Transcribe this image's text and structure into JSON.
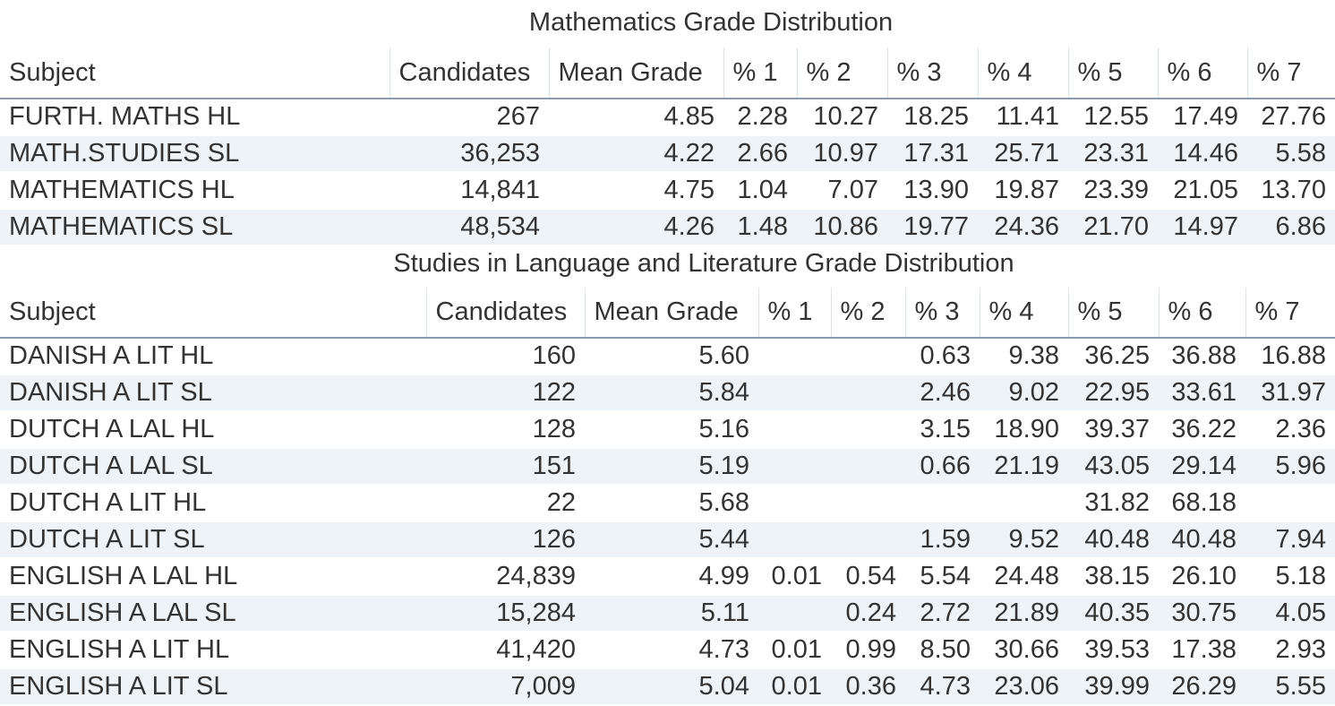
{
  "chart_data": [
    {
      "type": "table",
      "title": "Mathematics Grade Distribution",
      "columns": [
        "Subject",
        "Candidates",
        "Mean Grade",
        "% 1",
        "% 2",
        "% 3",
        "% 4",
        "% 5",
        "% 6",
        "% 7"
      ],
      "rows": [
        [
          "FURTH. MATHS HL",
          "267",
          "4.85",
          "2.28",
          "10.27",
          "18.25",
          "11.41",
          "12.55",
          "17.49",
          "27.76"
        ],
        [
          "MATH.STUDIES SL",
          "36,253",
          "4.22",
          "2.66",
          "10.97",
          "17.31",
          "25.71",
          "23.31",
          "14.46",
          "5.58"
        ],
        [
          "MATHEMATICS HL",
          "14,841",
          "4.75",
          "1.04",
          "7.07",
          "13.90",
          "19.87",
          "23.39",
          "21.05",
          "13.70"
        ],
        [
          "MATHEMATICS SL",
          "48,534",
          "4.26",
          "1.48",
          "10.86",
          "19.77",
          "24.36",
          "21.70",
          "14.97",
          "6.86"
        ]
      ]
    },
    {
      "type": "table",
      "title": "Studies in Language and Literature Grade Distribution",
      "columns": [
        "Subject",
        "Candidates",
        "Mean Grade",
        "% 1",
        "% 2",
        "% 3",
        "% 4",
        "% 5",
        "% 6",
        "% 7"
      ],
      "rows": [
        [
          "DANISH A LIT HL",
          "160",
          "5.60",
          "",
          "",
          "0.63",
          "9.38",
          "36.25",
          "36.88",
          "16.88"
        ],
        [
          "DANISH A LIT SL",
          "122",
          "5.84",
          "",
          "",
          "2.46",
          "9.02",
          "22.95",
          "33.61",
          "31.97"
        ],
        [
          "DUTCH A LAL HL",
          "128",
          "5.16",
          "",
          "",
          "3.15",
          "18.90",
          "39.37",
          "36.22",
          "2.36"
        ],
        [
          "DUTCH A LAL SL",
          "151",
          "5.19",
          "",
          "",
          "0.66",
          "21.19",
          "43.05",
          "29.14",
          "5.96"
        ],
        [
          "DUTCH A LIT HL",
          "22",
          "5.68",
          "",
          "",
          "",
          "",
          "31.82",
          "68.18",
          ""
        ],
        [
          "DUTCH A LIT SL",
          "126",
          "5.44",
          "",
          "",
          "1.59",
          "9.52",
          "40.48",
          "40.48",
          "7.94"
        ],
        [
          "ENGLISH A LAL HL",
          "24,839",
          "4.99",
          "0.01",
          "0.54",
          "5.54",
          "24.48",
          "38.15",
          "26.10",
          "5.18"
        ],
        [
          "ENGLISH A LAL SL",
          "15,284",
          "5.11",
          "",
          "0.24",
          "2.72",
          "21.89",
          "40.35",
          "30.75",
          "4.05"
        ],
        [
          "ENGLISH A LIT HL",
          "41,420",
          "4.73",
          "0.01",
          "0.99",
          "8.50",
          "30.66",
          "39.53",
          "17.38",
          "2.93"
        ],
        [
          "ENGLISH A LIT SL",
          "7,009",
          "5.04",
          "0.01",
          "0.36",
          "4.73",
          "23.06",
          "39.99",
          "26.29",
          "5.55"
        ]
      ]
    }
  ],
  "colors": {
    "text": "#333333",
    "stripe": "#edf3f7",
    "header_rule": "#8a9bb0",
    "column_divider": "#dde3ea"
  }
}
